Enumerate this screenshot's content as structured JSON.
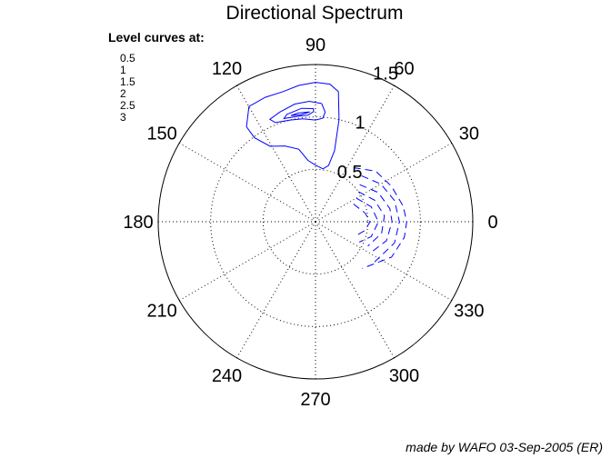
{
  "chart_data": {
    "type": "polar-contour",
    "title": "Directional Spectrum",
    "angle_ticks": [
      0,
      30,
      60,
      90,
      120,
      150,
      180,
      210,
      240,
      270,
      300,
      330
    ],
    "radius_ticks": [
      "0.5",
      "1",
      "1.5"
    ],
    "rmax": 1.5,
    "legend_title": "Level curves at:",
    "levels": [
      "0.5",
      "1",
      "1.5",
      "2",
      "2.5",
      "3"
    ],
    "grid": true,
    "legend_placement": "top-left",
    "colors": {
      "contours": "#0000ff",
      "axes": "#000000"
    },
    "series": [
      {
        "line_style": "solid",
        "contours": [
          [
            [
              77,
              1.0
            ],
            [
              80,
              1.26
            ],
            [
              84,
              1.32
            ],
            [
              90,
              1.33
            ],
            [
              97,
              1.31
            ],
            [
              104,
              1.28
            ],
            [
              112,
              1.28
            ],
            [
              120,
              1.27
            ],
            [
              126,
              1.12
            ],
            [
              126,
              0.99
            ],
            [
              121,
              0.84
            ],
            [
              112,
              0.78
            ],
            [
              103,
              0.71
            ],
            [
              97,
              0.59
            ],
            [
              90,
              0.54
            ],
            [
              82,
              0.51
            ],
            [
              77,
              0.55
            ],
            [
              75,
              0.7
            ],
            [
              77,
              1.0
            ]
          ],
          [
            [
              87,
              1.13
            ],
            [
              93,
              1.15
            ],
            [
              100,
              1.14
            ],
            [
              108,
              1.1
            ],
            [
              114,
              1.07
            ],
            [
              112,
              1.02
            ],
            [
              104,
              1.0
            ],
            [
              97,
              0.99
            ],
            [
              90,
              0.97
            ],
            [
              86,
              0.99
            ],
            [
              85,
              1.05
            ],
            [
              87,
              1.13
            ]
          ],
          [
            [
              91,
              1.08
            ],
            [
              97,
              1.09
            ],
            [
              105,
              1.06
            ],
            [
              107,
              1.03
            ],
            [
              100,
              1.02
            ],
            [
              94,
              1.02
            ],
            [
              91,
              1.05
            ],
            [
              91,
              1.08
            ]
          ],
          [
            [
              93,
              1.05
            ],
            [
              99,
              1.05
            ],
            [
              103,
              1.04
            ],
            [
              98,
              1.03
            ],
            [
              93,
              1.05
            ]
          ]
        ]
      },
      {
        "line_style": "dashed",
        "contours": [
          [
            [
              55,
              0.63
            ],
            [
              40,
              0.75
            ],
            [
              25,
              0.8
            ],
            [
              10,
              0.85
            ],
            [
              0,
              0.87
            ],
            [
              -10,
              0.86
            ],
            [
              -25,
              0.8
            ],
            [
              -45,
              0.63
            ]
          ],
          [
            [
              45,
              0.62
            ],
            [
              30,
              0.72
            ],
            [
              15,
              0.78
            ],
            [
              0,
              0.8
            ],
            [
              -15,
              0.78
            ],
            [
              -35,
              0.68
            ]
          ],
          [
            [
              40,
              0.55
            ],
            [
              25,
              0.66
            ],
            [
              10,
              0.72
            ],
            [
              0,
              0.73
            ],
            [
              -15,
              0.7
            ],
            [
              -30,
              0.6
            ]
          ],
          [
            [
              35,
              0.5
            ],
            [
              20,
              0.6
            ],
            [
              5,
              0.66
            ],
            [
              -10,
              0.64
            ],
            [
              -25,
              0.55
            ]
          ],
          [
            [
              30,
              0.45
            ],
            [
              15,
              0.55
            ],
            [
              0,
              0.6
            ],
            [
              -15,
              0.55
            ],
            [
              -25,
              0.46
            ]
          ],
          [
            [
              25,
              0.4
            ],
            [
              10,
              0.48
            ],
            [
              0,
              0.52
            ],
            [
              -10,
              0.48
            ],
            [
              -20,
              0.4
            ]
          ]
        ]
      }
    ]
  },
  "credit": "made by WAFO 03-Sep-2005 (ER)"
}
